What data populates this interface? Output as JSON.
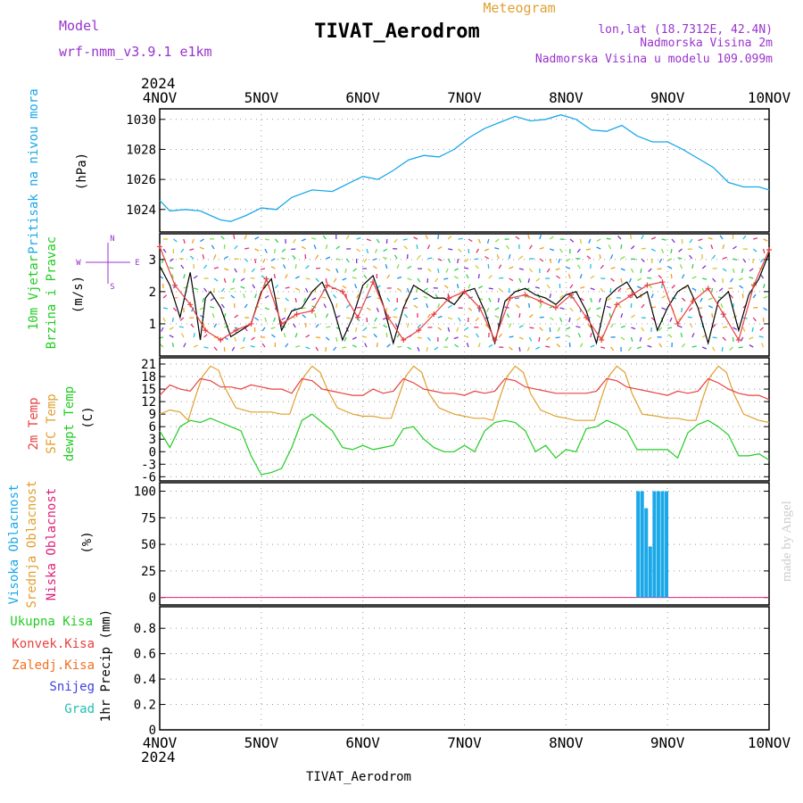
{
  "header": {
    "model_label": "Model",
    "model_value": "wrf-nmm_v3.9.1  e1km",
    "title": "TIVAT_Aerodrom",
    "subtitle": "Meteogram",
    "lonlat": "lon,lat (18.7312E, 42.4N)",
    "elev": "Nadmorska Visina 2m",
    "model_elev": "Nadmorska Visina u modelu 109.099m",
    "footer": "TIVAT_Aerodrom",
    "credit": "made by Angel",
    "year": "2024"
  },
  "x_ticks": [
    "4NOV",
    "5NOV",
    "6NOV",
    "7NOV",
    "8NOV",
    "9NOV",
    "10NOV"
  ],
  "colors": {
    "pressure": "#1aa8e8",
    "temp2m": "#e84040",
    "sfc": "#e0a030",
    "dewpt": "#22cc22",
    "high_cloud": "#1aa8e8",
    "mid_cloud": "#e0a030",
    "low_cloud": "#e0207a",
    "precip_total": "#22cc22",
    "precip_conv": "#e84040",
    "precip_frozen": "#f07020",
    "snow": "#4040e0",
    "grad": "#20c0b0",
    "wind_speed": "#000000",
    "wind_gust": "#e84040",
    "compass": "#9933cc"
  },
  "chart_data": [
    {
      "type": "line",
      "panel": "pressure",
      "label_main": "Pritisak na nivou mora",
      "unit": "(hPa)",
      "x_range_days": [
        0,
        6
      ],
      "ylim": [
        1022.5,
        1030.7
      ],
      "yticks": [
        1024,
        1026,
        1028,
        1030
      ],
      "grid": true,
      "series": [
        {
          "x": [
            0,
            0.1,
            0.25,
            0.4,
            0.5,
            0.6,
            0.7,
            0.85,
            1.0,
            1.15,
            1.3,
            1.5,
            1.7,
            1.85,
            2.0,
            2.15,
            2.3,
            2.45,
            2.6,
            2.75,
            2.9,
            3.05,
            3.2,
            3.35,
            3.5,
            3.65,
            3.8,
            3.95,
            4.1,
            4.25,
            4.4,
            4.55,
            4.7,
            4.85,
            5.0,
            5.15,
            5.3,
            5.45,
            5.6,
            5.75,
            5.9,
            6.0
          ],
          "values": [
            1024.6,
            1023.9,
            1024.0,
            1023.9,
            1023.6,
            1023.3,
            1023.2,
            1023.6,
            1024.1,
            1024.0,
            1024.8,
            1025.3,
            1025.2,
            1025.7,
            1026.2,
            1026.0,
            1026.6,
            1027.3,
            1027.6,
            1027.5,
            1028.0,
            1028.8,
            1029.4,
            1029.8,
            1030.2,
            1029.9,
            1030.0,
            1030.3,
            1030.0,
            1029.3,
            1029.2,
            1029.6,
            1028.9,
            1028.5,
            1028.5,
            1028.0,
            1027.4,
            1026.8,
            1025.8,
            1025.5,
            1025.5,
            1025.3
          ]
        }
      ]
    },
    {
      "type": "line",
      "panel": "wind",
      "label_main": "10m Vjetar",
      "label_sub": "Brzina i Pravac",
      "unit": "(m/s)",
      "x_range_days": [
        0,
        6
      ],
      "ylim": [
        0,
        3.8
      ],
      "yticks": [
        1,
        2,
        3
      ],
      "grid": true,
      "compass": {
        "north": "N",
        "west": "W",
        "east": "E",
        "south": "S"
      },
      "series": [
        {
          "name": "speed",
          "x": [
            0,
            0.1,
            0.2,
            0.3,
            0.35,
            0.4,
            0.45,
            0.5,
            0.6,
            0.7,
            0.8,
            0.9,
            1.0,
            1.1,
            1.2,
            1.3,
            1.4,
            1.5,
            1.6,
            1.7,
            1.8,
            1.9,
            2.0,
            2.1,
            2.2,
            2.3,
            2.4,
            2.5,
            2.6,
            2.7,
            2.8,
            2.9,
            3.0,
            3.1,
            3.2,
            3.3,
            3.4,
            3.5,
            3.6,
            3.7,
            3.8,
            3.9,
            4.0,
            4.1,
            4.2,
            4.3,
            4.4,
            4.5,
            4.6,
            4.7,
            4.8,
            4.9,
            5.0,
            5.1,
            5.2,
            5.3,
            5.4,
            5.5,
            5.6,
            5.7,
            5.8,
            5.9,
            6.0
          ],
          "values": [
            2.8,
            2.2,
            1.2,
            2.6,
            1.6,
            0.5,
            1.8,
            2.0,
            1.5,
            0.6,
            0.8,
            1.0,
            2.0,
            2.4,
            0.8,
            1.4,
            1.5,
            2.0,
            2.3,
            1.6,
            0.5,
            1.2,
            2.2,
            2.5,
            1.6,
            0.4,
            1.5,
            2.2,
            2.0,
            1.8,
            1.8,
            1.6,
            2.0,
            2.1,
            1.4,
            0.4,
            1.7,
            2.0,
            2.1,
            1.9,
            1.8,
            1.6,
            1.9,
            2.0,
            1.4,
            0.4,
            1.8,
            2.1,
            2.3,
            1.8,
            2.0,
            0.8,
            1.5,
            2.0,
            2.2,
            1.5,
            0.4,
            1.7,
            2.0,
            0.8,
            1.9,
            2.4,
            3.2
          ]
        },
        {
          "name": "gust",
          "x": [
            0,
            0.15,
            0.3,
            0.45,
            0.6,
            0.75,
            0.9,
            1.05,
            1.2,
            1.35,
            1.5,
            1.65,
            1.8,
            1.95,
            2.1,
            2.25,
            2.4,
            2.55,
            2.7,
            2.85,
            3.0,
            3.15,
            3.3,
            3.45,
            3.6,
            3.75,
            3.9,
            4.05,
            4.2,
            4.35,
            4.5,
            4.65,
            4.8,
            4.95,
            5.1,
            5.25,
            5.4,
            5.55,
            5.7,
            5.85,
            6.0
          ],
          "values": [
            3.4,
            2.2,
            1.6,
            0.8,
            0.5,
            0.8,
            1.0,
            2.4,
            1.0,
            1.3,
            1.4,
            2.2,
            2.0,
            1.2,
            2.3,
            1.2,
            0.5,
            0.8,
            1.3,
            1.8,
            2.0,
            1.5,
            0.5,
            1.8,
            1.9,
            1.7,
            1.5,
            1.9,
            1.2,
            0.5,
            1.6,
            1.9,
            2.2,
            2.3,
            1.0,
            1.7,
            2.1,
            1.3,
            0.5,
            2.2,
            3.3
          ]
        }
      ]
    },
    {
      "type": "line",
      "panel": "temperature",
      "labels": [
        "2m Temp",
        "SFC Temp",
        "dewpt Temp"
      ],
      "unit": "(C)",
      "x_range_days": [
        0,
        6
      ],
      "ylim": [
        -7,
        22.5
      ],
      "yticks": [
        -6,
        -3,
        0,
        3,
        6,
        9,
        12,
        15,
        18,
        21
      ],
      "grid": true,
      "series": [
        {
          "name": "2m Temp",
          "x": [
            0,
            0.1,
            0.2,
            0.3,
            0.4,
            0.5,
            0.6,
            0.7,
            0.8,
            0.9,
            1.0,
            1.1,
            1.2,
            1.3,
            1.4,
            1.5,
            1.6,
            1.7,
            1.8,
            1.9,
            2.0,
            2.1,
            2.2,
            2.3,
            2.4,
            2.5,
            2.6,
            2.7,
            2.8,
            2.9,
            3.0,
            3.1,
            3.2,
            3.3,
            3.4,
            3.5,
            3.6,
            3.7,
            3.8,
            3.9,
            4.0,
            4.1,
            4.2,
            4.3,
            4.4,
            4.5,
            4.6,
            4.7,
            4.8,
            4.9,
            5.0,
            5.1,
            5.2,
            5.3,
            5.4,
            5.5,
            5.6,
            5.7,
            5.8,
            5.9,
            6.0
          ],
          "values": [
            13.5,
            16.0,
            15.0,
            14.5,
            17.5,
            17.0,
            15.5,
            15.5,
            15.0,
            16.0,
            15.5,
            15.0,
            15.0,
            14.0,
            17.5,
            17.0,
            15.0,
            14.5,
            14.0,
            13.5,
            13.5,
            15.0,
            14.0,
            14.5,
            17.5,
            16.5,
            15.0,
            14.5,
            14.0,
            14.0,
            13.5,
            14.5,
            14.0,
            14.5,
            17.5,
            17.0,
            15.5,
            15.0,
            14.5,
            14.0,
            14.0,
            14.0,
            14.0,
            14.5,
            17.5,
            17.0,
            15.5,
            15.0,
            14.5,
            14.0,
            13.5,
            14.5,
            14.0,
            14.5,
            17.5,
            16.5,
            15.0,
            14.0,
            13.5,
            13.5,
            12.5
          ]
        },
        {
          "name": "SFC Temp",
          "x": [
            0,
            0.1,
            0.2,
            0.28,
            0.35,
            0.42,
            0.5,
            0.58,
            0.65,
            0.75,
            0.9,
            1.0,
            1.1,
            1.2,
            1.28,
            1.35,
            1.42,
            1.5,
            1.58,
            1.65,
            1.75,
            1.9,
            2.0,
            2.1,
            2.2,
            2.28,
            2.35,
            2.42,
            2.5,
            2.58,
            2.65,
            2.75,
            2.9,
            3.0,
            3.1,
            3.2,
            3.28,
            3.35,
            3.42,
            3.5,
            3.58,
            3.65,
            3.75,
            3.9,
            4.0,
            4.1,
            4.2,
            4.28,
            4.35,
            4.42,
            4.5,
            4.58,
            4.65,
            4.75,
            4.9,
            5.0,
            5.1,
            5.2,
            5.28,
            5.35,
            5.42,
            5.5,
            5.58,
            5.65,
            5.75,
            5.9,
            6.0
          ],
          "values": [
            9.0,
            10.0,
            9.5,
            7.5,
            13.0,
            18.0,
            20.5,
            19.5,
            15.0,
            10.5,
            9.5,
            9.5,
            9.5,
            9.0,
            9.0,
            14.0,
            18.0,
            20.5,
            19.0,
            15.0,
            10.5,
            9.0,
            8.5,
            8.5,
            8.0,
            8.0,
            13.0,
            18.0,
            20.5,
            19.0,
            14.0,
            10.5,
            9.0,
            8.5,
            8.0,
            8.0,
            7.5,
            13.0,
            18.0,
            20.5,
            19.0,
            14.0,
            10.0,
            8.5,
            8.0,
            7.5,
            7.5,
            7.5,
            13.0,
            18.0,
            20.5,
            19.0,
            14.0,
            9.0,
            8.5,
            8.0,
            8.0,
            7.5,
            7.5,
            13.0,
            18.0,
            20.5,
            19.0,
            14.0,
            9.0,
            7.5,
            7.0
          ]
        },
        {
          "name": "dewpt Temp",
          "x": [
            0,
            0.1,
            0.2,
            0.3,
            0.4,
            0.5,
            0.6,
            0.7,
            0.8,
            0.9,
            1.0,
            1.1,
            1.2,
            1.3,
            1.4,
            1.5,
            1.6,
            1.7,
            1.8,
            1.9,
            2.0,
            2.1,
            2.2,
            2.3,
            2.4,
            2.5,
            2.6,
            2.7,
            2.8,
            2.9,
            3.0,
            3.1,
            3.2,
            3.3,
            3.4,
            3.5,
            3.6,
            3.7,
            3.8,
            3.9,
            4.0,
            4.1,
            4.2,
            4.3,
            4.4,
            4.5,
            4.6,
            4.7,
            4.8,
            4.9,
            5.0,
            5.1,
            5.2,
            5.3,
            5.4,
            5.5,
            5.6,
            5.7,
            5.8,
            5.9,
            6.0
          ],
          "values": [
            5.0,
            1.0,
            6.0,
            7.5,
            7.0,
            8.0,
            7.0,
            6.0,
            5.0,
            -1.0,
            -5.5,
            -5.0,
            -4.0,
            1.0,
            7.5,
            9.0,
            7.0,
            5.0,
            1.0,
            0.5,
            1.5,
            0.5,
            1.0,
            1.5,
            5.5,
            6.0,
            3.0,
            1.0,
            0.0,
            0.0,
            1.5,
            0.0,
            5.0,
            7.0,
            7.5,
            7.0,
            5.0,
            0.0,
            1.5,
            -1.5,
            0.5,
            0.0,
            5.5,
            6.0,
            7.5,
            6.5,
            5.0,
            0.5,
            0.5,
            0.5,
            0.5,
            -1.5,
            4.5,
            6.5,
            7.5,
            6.0,
            4.0,
            -1.0,
            -1.0,
            -0.5,
            -2.0
          ]
        }
      ]
    },
    {
      "type": "bar",
      "panel": "cloud",
      "labels": [
        "Visoka Oblacnost",
        "Srednja Oblacnost",
        "Niska Oblacnost"
      ],
      "unit": "(%)",
      "x_range_days": [
        0,
        6
      ],
      "ylim": [
        -7,
        108
      ],
      "yticks": [
        0,
        25,
        50,
        75,
        100
      ],
      "grid": true,
      "series": [
        {
          "name": "Visoka Oblacnost",
          "x": [
            4.71,
            4.75,
            4.79,
            4.83,
            4.87,
            4.91,
            4.95,
            4.99
          ],
          "values": [
            100,
            100,
            84,
            48,
            100,
            100,
            100,
            100
          ]
        }
      ]
    },
    {
      "type": "bar",
      "panel": "precip",
      "labels": [
        "Ukupna  Kisa",
        "Konvek.Kisa",
        "Zaledj.Kisa",
        "Snijeg",
        "Grad"
      ],
      "unit": "1hr Precip (mm)",
      "x_range_days": [
        0,
        6
      ],
      "ylim": [
        0,
        0.97
      ],
      "yticks": [
        0,
        0.2,
        0.4,
        0.6,
        0.8
      ],
      "grid": true,
      "series": []
    }
  ]
}
